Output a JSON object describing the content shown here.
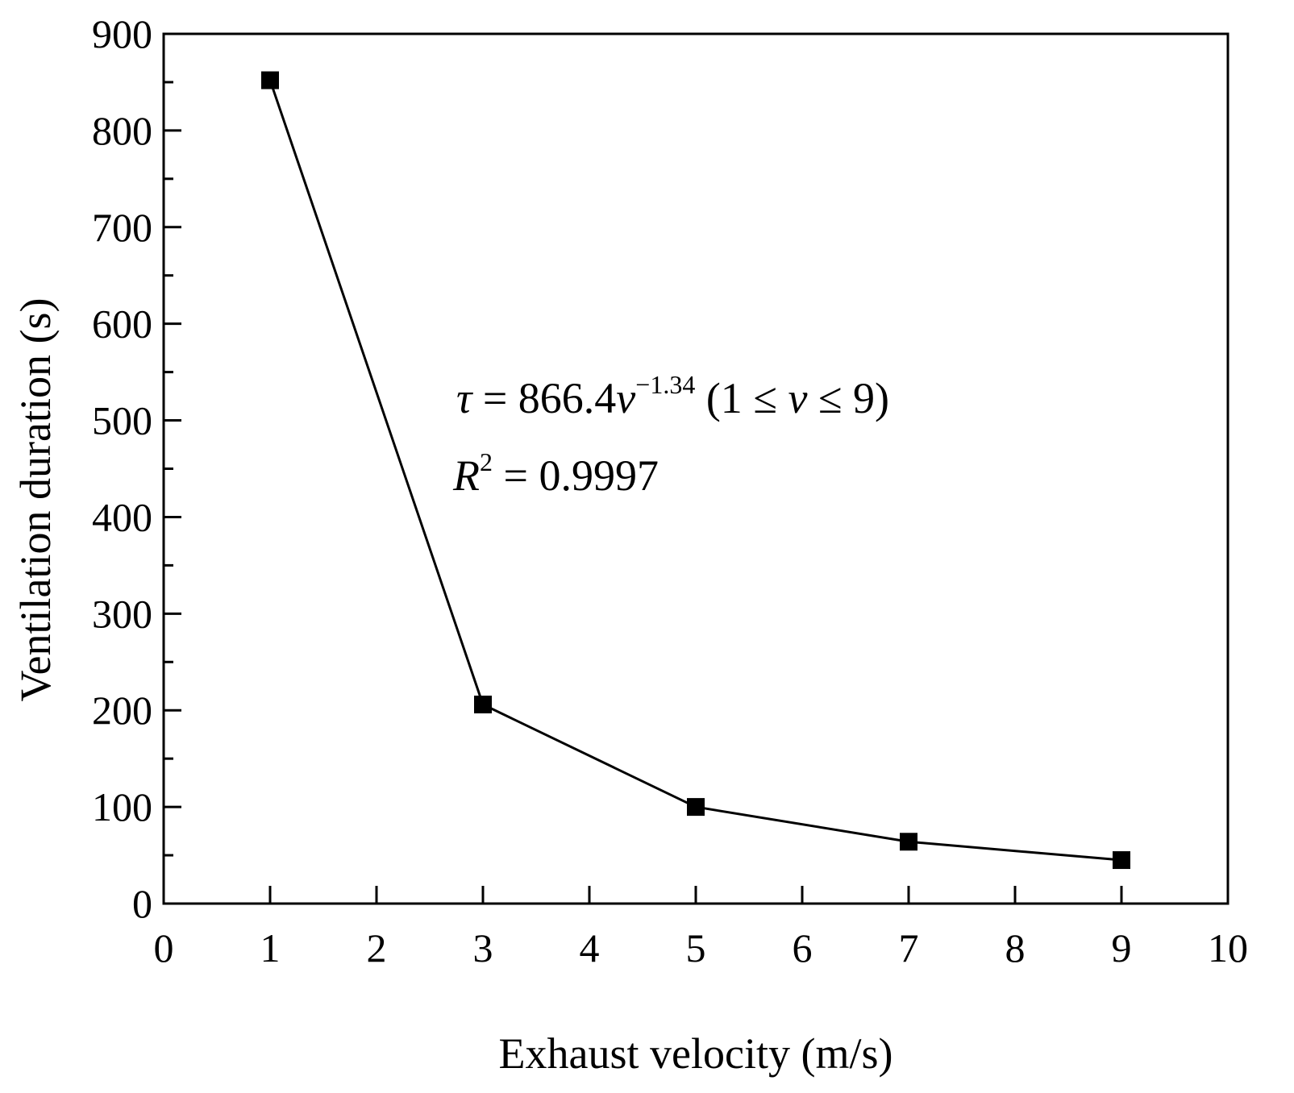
{
  "chart_data": {
    "type": "line",
    "xlabel": "Exhaust velocity (m/s)",
    "ylabel": "Ventilation duration (s)",
    "xlim": [
      0,
      10
    ],
    "ylim": [
      0,
      900
    ],
    "x_ticks": [
      0,
      1,
      2,
      3,
      4,
      5,
      6,
      7,
      8,
      9,
      10
    ],
    "y_ticks": [
      0,
      100,
      200,
      300,
      400,
      500,
      600,
      700,
      800,
      900
    ],
    "grid": false,
    "marker": "square",
    "series": [
      {
        "x": [
          1,
          3,
          5,
          7,
          9
        ],
        "y": [
          852,
          206,
          100,
          64,
          45
        ]
      }
    ],
    "annotations": {
      "equation": {
        "tau": "τ",
        "equals": " = 866.4",
        "v": "v",
        "exponent": "−1.34",
        "range_open": " (1 ≤ ",
        "range_v": "v",
        "range_close": " ≤ 9)"
      },
      "r_squared": {
        "R": "R",
        "exponent": "2",
        "value": " = 0.9997"
      }
    }
  }
}
